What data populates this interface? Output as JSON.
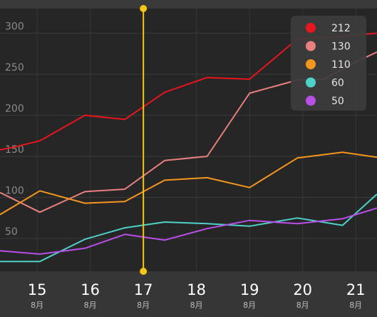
{
  "chart_data": {
    "type": "line",
    "x_ticks": [
      {
        "day": "15",
        "month": "8月"
      },
      {
        "day": "16",
        "month": "8月"
      },
      {
        "day": "17",
        "month": "8月"
      },
      {
        "day": "18",
        "month": "8月"
      },
      {
        "day": "19",
        "month": "8月"
      },
      {
        "day": "20",
        "month": "8月"
      },
      {
        "day": "21",
        "month": "8月"
      }
    ],
    "x_range": [
      14.3,
      21.4
    ],
    "ylim": [
      10,
      330
    ],
    "y_ticks": [
      50,
      100,
      150,
      200,
      250,
      300
    ],
    "grid": true,
    "cursor_x": 17.0,
    "legend_position": "top-right",
    "series": [
      {
        "name": "212",
        "color": "#e8141e",
        "x": [
          14.3,
          14.55,
          15.05,
          15.9,
          16.65,
          17.4,
          18.2,
          19.0,
          19.9,
          20.75,
          21.4
        ],
        "y": [
          158,
          161,
          169,
          200,
          195,
          228,
          246,
          244,
          293,
          296,
          300
        ]
      },
      {
        "name": "130",
        "color": "#e8807e",
        "x": [
          14.3,
          15.05,
          15.9,
          16.65,
          17.4,
          18.2,
          19.0,
          19.9,
          20.4,
          21.0,
          21.4
        ],
        "y": [
          106,
          82,
          107,
          110,
          145,
          150,
          227,
          243,
          244,
          265,
          277
        ]
      },
      {
        "name": "110",
        "color": "#f4961e",
        "x": [
          14.3,
          15.05,
          15.9,
          16.65,
          17.4,
          18.2,
          19.0,
          19.9,
          20.75,
          21.4
        ],
        "y": [
          79,
          108,
          93,
          95,
          121,
          124,
          112,
          148,
          155,
          149
        ]
      },
      {
        "name": "60",
        "color": "#4ed1c8",
        "x": [
          14.3,
          15.05,
          15.9,
          16.65,
          17.4,
          18.2,
          19.0,
          19.9,
          20.75,
          21.4
        ],
        "y": [
          22,
          22,
          49,
          63,
          70,
          68,
          65,
          75,
          66,
          104
        ]
      },
      {
        "name": "50",
        "color": "#b94ee8",
        "x": [
          14.3,
          15.05,
          15.9,
          16.65,
          17.4,
          18.2,
          19.0,
          19.9,
          20.75,
          21.4
        ],
        "y": [
          35,
          31,
          38,
          55,
          48,
          62,
          72,
          68,
          74,
          87
        ]
      }
    ]
  }
}
